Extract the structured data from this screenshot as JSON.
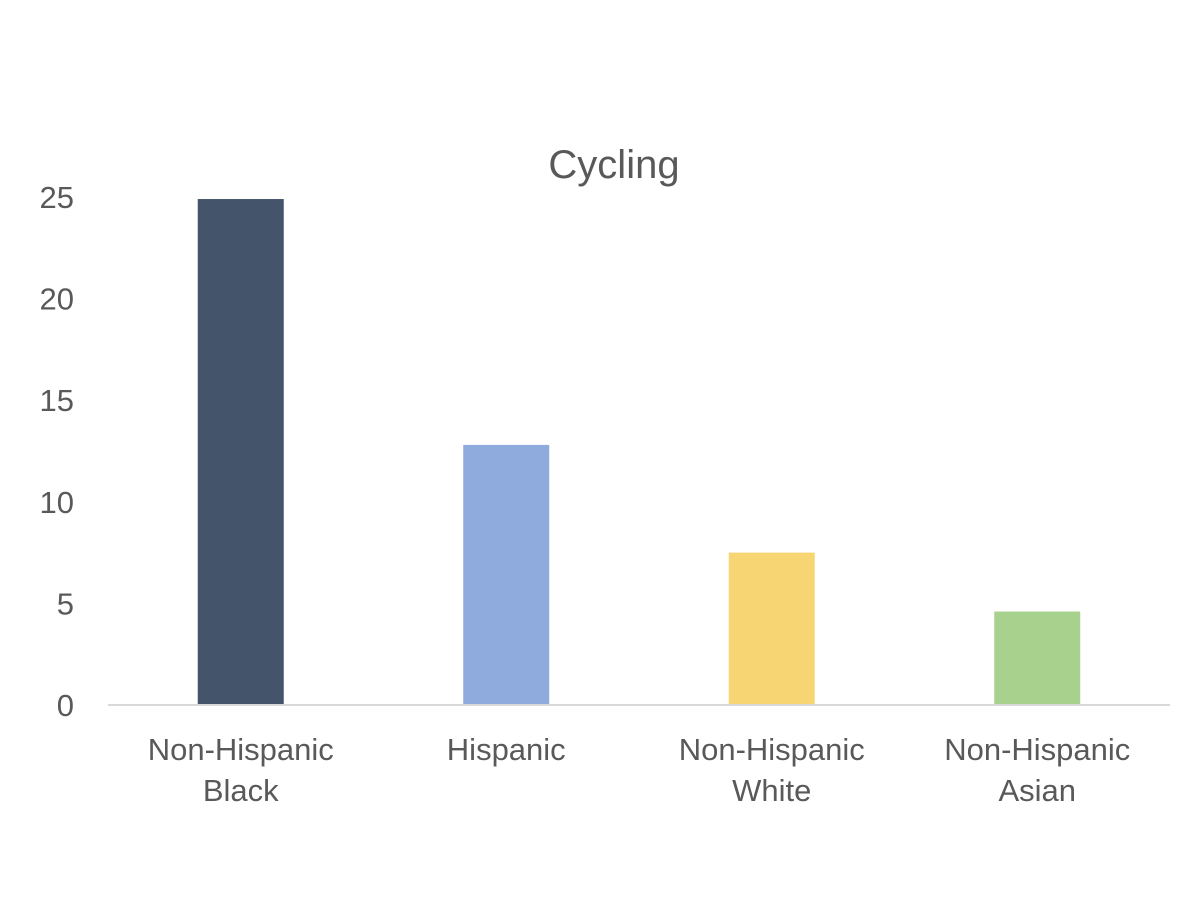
{
  "chart_data": {
    "type": "bar",
    "title": "Cycling",
    "xlabel": "",
    "ylabel": "",
    "categories": [
      [
        "Non-Hispanic",
        "Black"
      ],
      [
        "Hispanic"
      ],
      [
        "Non-Hispanic",
        "White"
      ],
      [
        "Non-Hispanic",
        "Asian"
      ]
    ],
    "values": [
      24.9,
      12.8,
      7.5,
      4.6
    ],
    "colors": [
      "#44546a",
      "#8faadc",
      "#f6d572",
      "#a9d18e"
    ],
    "ylim": [
      0,
      25
    ],
    "yticks": [
      0,
      5,
      10,
      15,
      20,
      25
    ],
    "grid": false,
    "legend": "none",
    "axis_color": "#d9d9d9"
  }
}
